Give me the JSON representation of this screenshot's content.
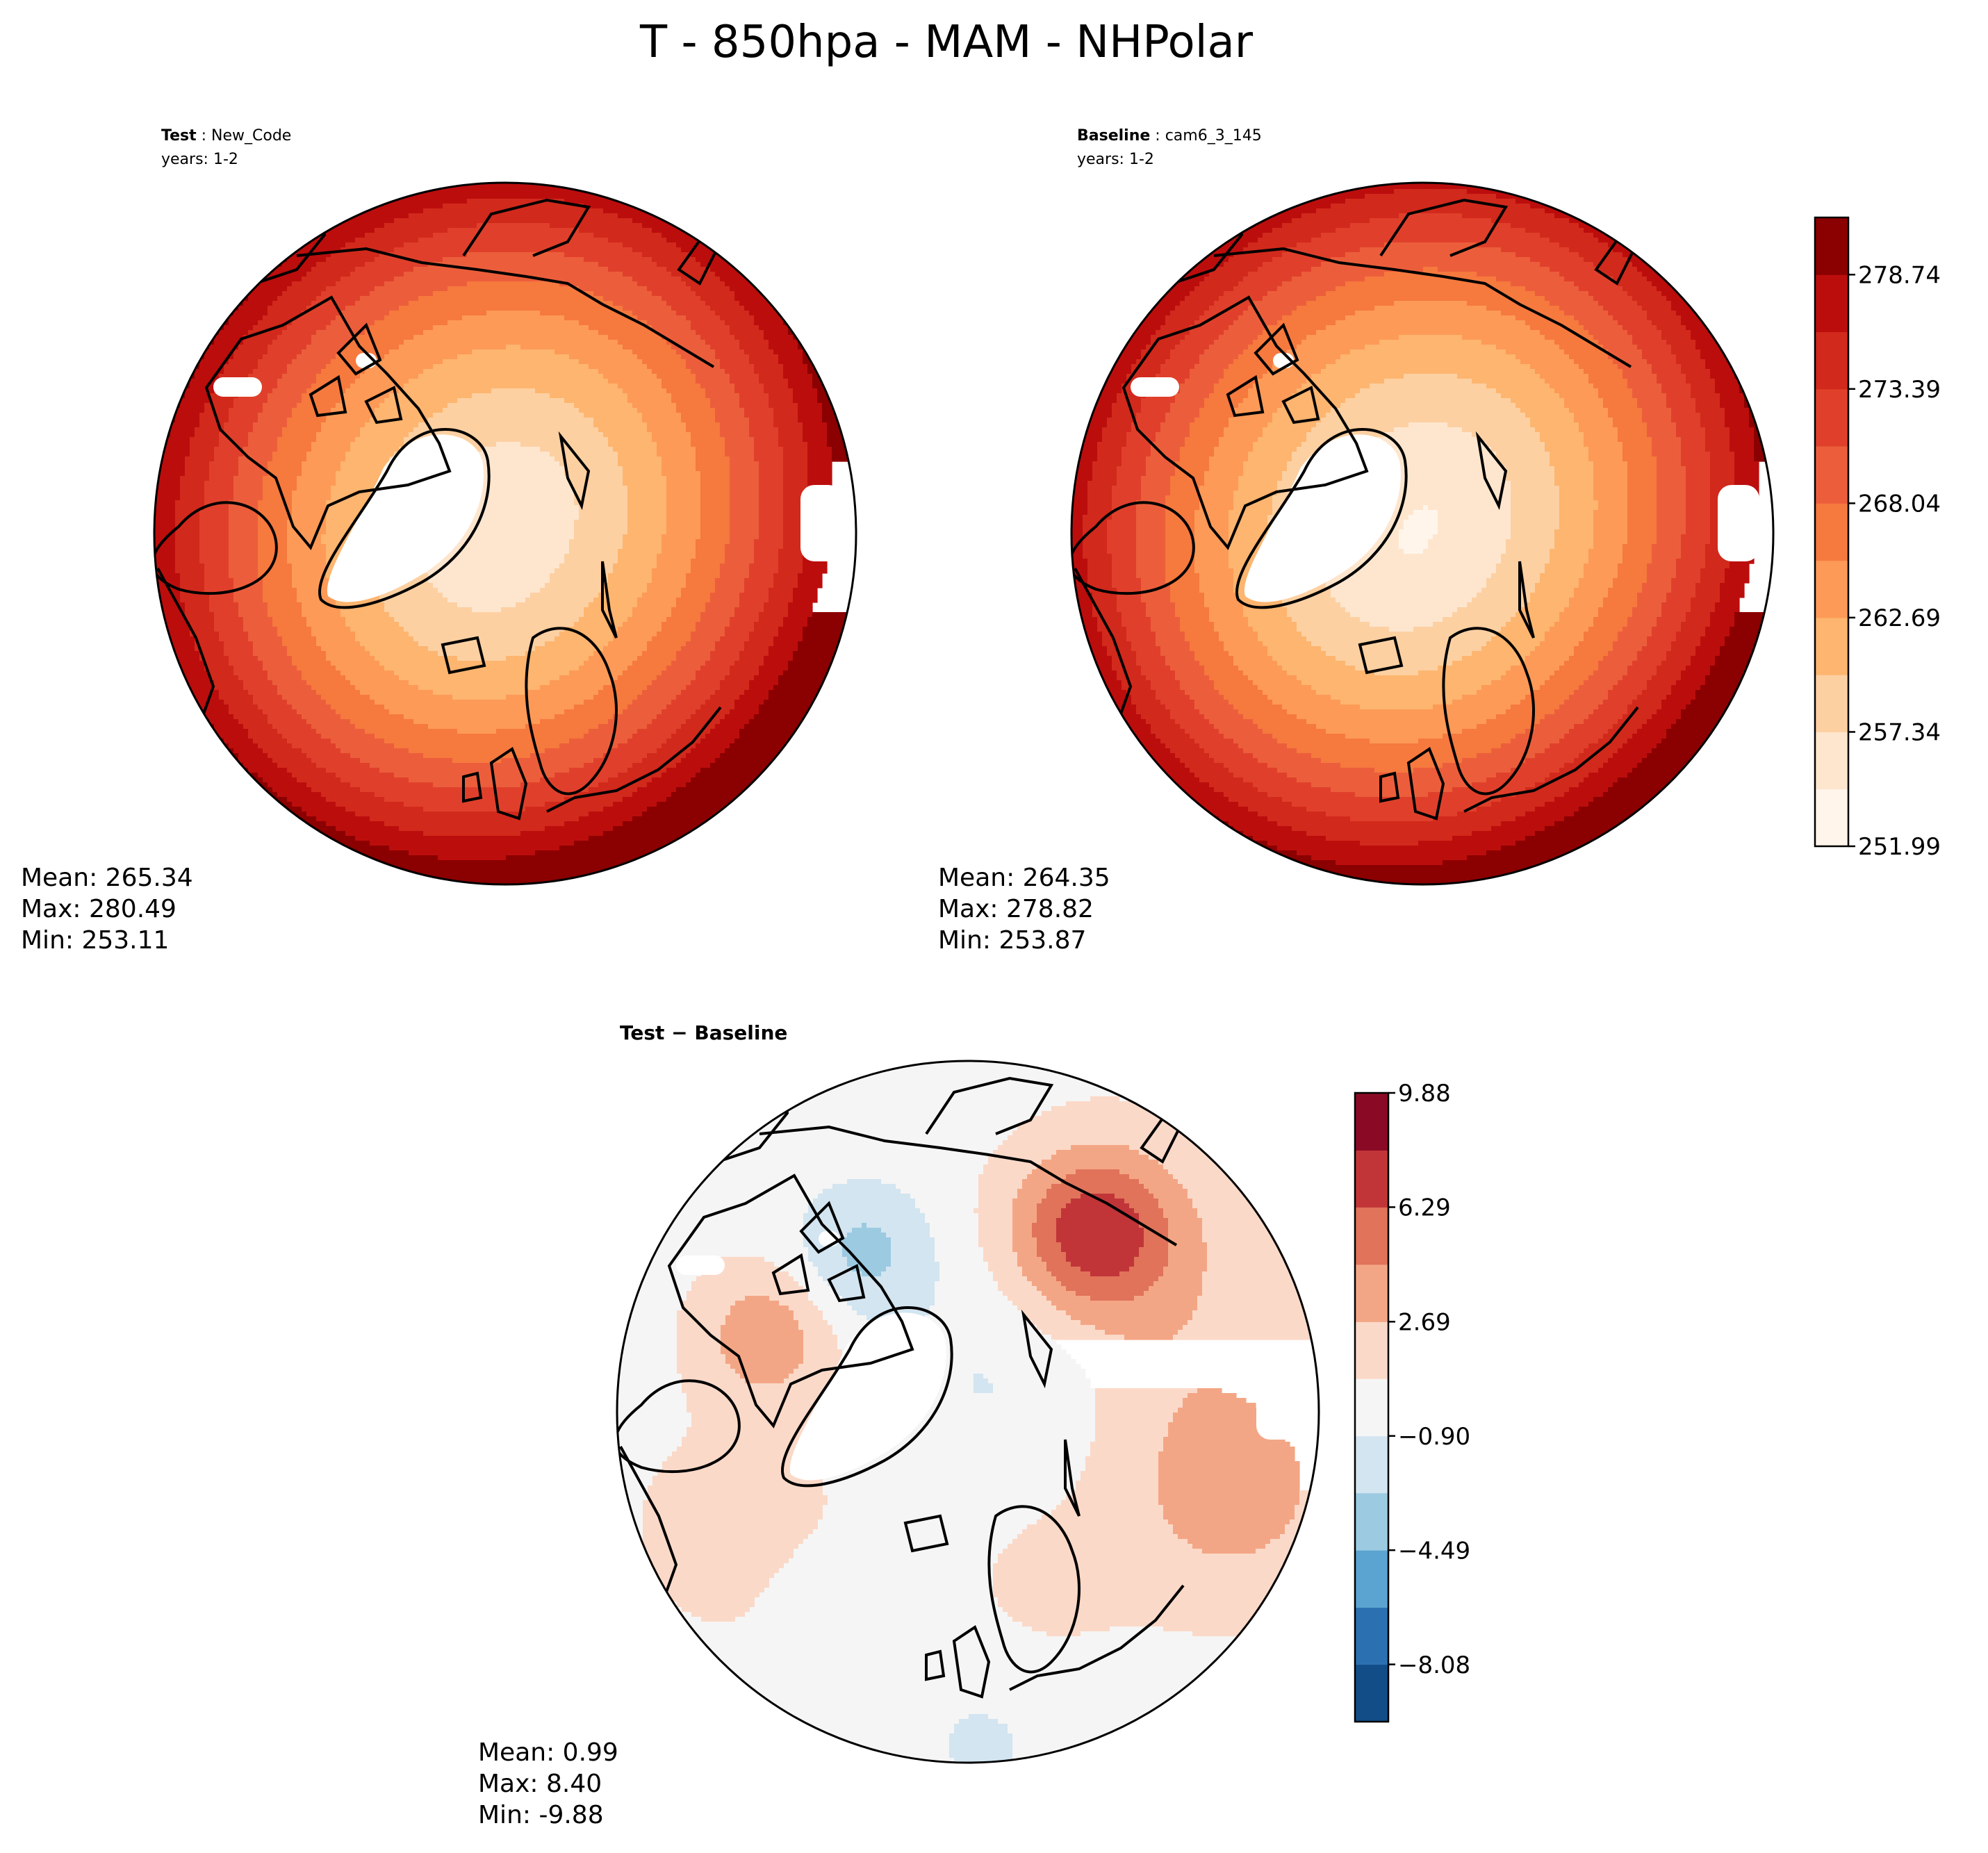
{
  "chart_data": [
    {
      "type": "heatmap",
      "subtype": "polar-stereographic-contour-map",
      "figure_title": "T - 850hpa - MAM - NHPolar",
      "panel": "Test",
      "label_bold": "Test",
      "label_value": "New_Code",
      "years": "years: 1-2",
      "stats": {
        "mean": "Mean: 265.34",
        "max": "Max: 280.49",
        "min": "Min: 253.11"
      },
      "field": "nh_temperature_test"
    },
    {
      "type": "heatmap",
      "subtype": "polar-stereographic-contour-map",
      "panel": "Baseline",
      "label_bold": "Baseline",
      "label_value": "cam6_3_145",
      "years": "years: 1-2",
      "stats": {
        "mean": "Mean: 264.35",
        "max": "Max: 278.82",
        "min": "Min: 253.87"
      },
      "field": "nh_temperature_baseline",
      "colorbar": {
        "levels": [
          251.99,
          254.665,
          257.34,
          260.015,
          262.69,
          265.365,
          268.04,
          270.715,
          273.39,
          276.065,
          278.74,
          281.415
        ],
        "tick_labels": [
          "251.99",
          "257.34",
          "262.69",
          "268.04",
          "273.39",
          "278.74"
        ],
        "colors": [
          "#fff5eb",
          "#fee6ce",
          "#fdd0a2",
          "#fdb56f",
          "#fd9a57",
          "#f6793e",
          "#ec5e3b",
          "#e0402b",
          "#d1291c",
          "#bc0d0d",
          "#8b0000"
        ]
      }
    },
    {
      "type": "heatmap",
      "subtype": "polar-stereographic-contour-map",
      "panel": "Test - Baseline",
      "title_parts": [
        "Test",
        "−",
        "Baseline"
      ],
      "stats": {
        "mean": "Mean:  0.99",
        "max": "Max:  8.40",
        "min": "Min: -9.88"
      },
      "field": "nh_temperature_difference",
      "colorbar": {
        "levels": [
          -9.88,
          -8.08,
          -6.29,
          -4.49,
          -2.69,
          -0.9,
          0.9,
          2.69,
          4.49,
          6.29,
          8.08,
          9.88
        ],
        "tick_labels": [
          "−8.08",
          "−4.49",
          "−0.90",
          "2.69",
          "6.29",
          "9.88"
        ],
        "colors": [
          "#134d88",
          "#2b71b2",
          "#5ba3d0",
          "#9ccae1",
          "#d2e5f0",
          "#f5f5f5",
          "#fbd9c8",
          "#f3a685",
          "#e0735a",
          "#c13539",
          "#8a0a25"
        ]
      }
    }
  ]
}
